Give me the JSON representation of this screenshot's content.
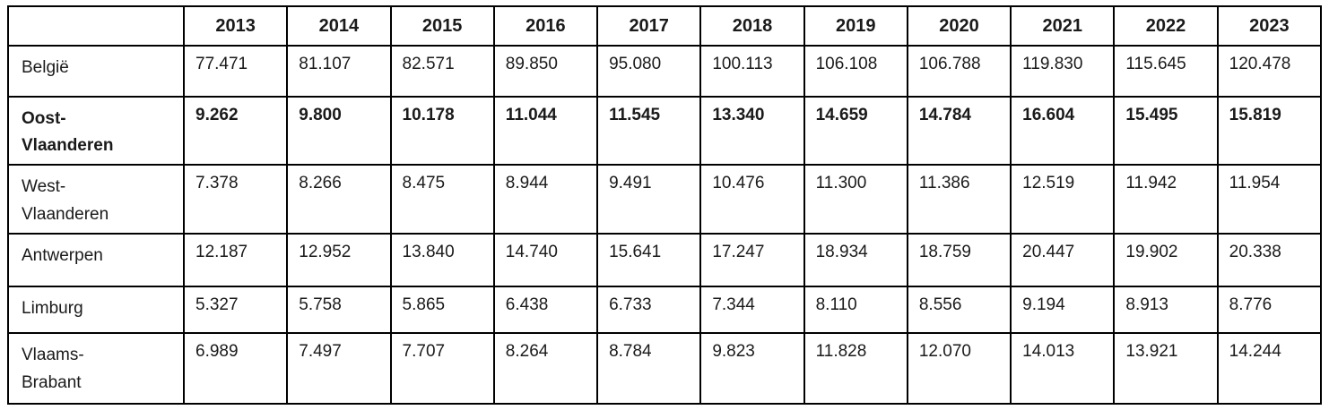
{
  "table": {
    "corner_label": "",
    "columns": [
      "2013",
      "2014",
      "2015",
      "2016",
      "2017",
      "2018",
      "2019",
      "2020",
      "2021",
      "2022",
      "2023"
    ],
    "rows": [
      {
        "label": "België",
        "bold": false,
        "values": [
          "77.471",
          "81.107",
          "82.571",
          "89.850",
          "95.080",
          "100.113",
          "106.108",
          "106.788",
          "119.830",
          "115.645",
          "120.478"
        ]
      },
      {
        "label": "Oost-Vlaanderen",
        "bold": true,
        "values": [
          "9.262",
          "9.800",
          "10.178",
          "11.044",
          "11.545",
          "13.340",
          "14.659",
          "14.784",
          "16.604",
          "15.495",
          "15.819"
        ]
      },
      {
        "label": "West-Vlaanderen",
        "bold": false,
        "values": [
          "7.378",
          "8.266",
          "8.475",
          "8.944",
          "9.491",
          "10.476",
          "11.300",
          "11.386",
          "12.519",
          "11.942",
          "11.954"
        ]
      },
      {
        "label": "Antwerpen",
        "bold": false,
        "values": [
          "12.187",
          "12.952",
          "13.840",
          "14.740",
          "15.641",
          "17.247",
          "18.934",
          "18.759",
          "20.447",
          "19.902",
          "20.338"
        ]
      },
      {
        "label": "Limburg",
        "bold": false,
        "values": [
          "5.327",
          "5.758",
          "5.865",
          "6.438",
          "6.733",
          "7.344",
          "8.110",
          "8.556",
          "9.194",
          "8.913",
          "8.776"
        ]
      },
      {
        "label": "Vlaams-Brabant",
        "bold": false,
        "values": [
          "6.989",
          "7.497",
          "7.707",
          "8.264",
          "8.784",
          "9.823",
          "11.828",
          "12.070",
          "14.013",
          "13.921",
          "14.244"
        ]
      }
    ]
  },
  "chart_data": {
    "type": "table",
    "title": "",
    "columns": [
      2013,
      2014,
      2015,
      2016,
      2017,
      2018,
      2019,
      2020,
      2021,
      2022,
      2023
    ],
    "rows": [
      {
        "name": "België",
        "values": [
          77471,
          81107,
          82571,
          89850,
          95080,
          100113,
          106108,
          106788,
          119830,
          115645,
          120478
        ]
      },
      {
        "name": "Oost-Vlaanderen",
        "values": [
          9262,
          9800,
          10178,
          11044,
          11545,
          13340,
          14659,
          14784,
          16604,
          15495,
          15819
        ]
      },
      {
        "name": "West-Vlaanderen",
        "values": [
          7378,
          8266,
          8475,
          8944,
          9491,
          10476,
          11300,
          11386,
          12519,
          11942,
          11954
        ]
      },
      {
        "name": "Antwerpen",
        "values": [
          12187,
          12952,
          13840,
          14740,
          15641,
          17247,
          18934,
          18759,
          20447,
          19902,
          20338
        ]
      },
      {
        "name": "Limburg",
        "values": [
          5327,
          5758,
          5865,
          6438,
          6733,
          7344,
          8110,
          8556,
          9194,
          8913,
          8776
        ]
      },
      {
        "name": "Vlaams-Brabant",
        "values": [
          6989,
          7497,
          7707,
          8264,
          8784,
          9823,
          11828,
          12070,
          14013,
          13921,
          14244
        ]
      }
    ],
    "colors": {
      "border": "#000000",
      "background": "#ffffff",
      "text": "#1a1a1a"
    }
  }
}
